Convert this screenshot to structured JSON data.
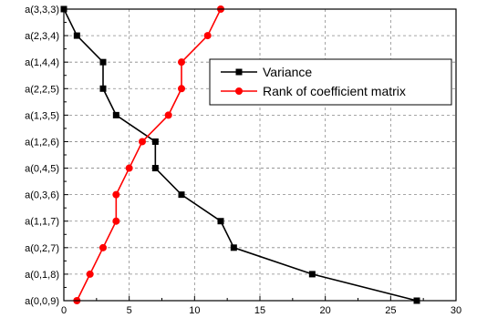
{
  "chart_data": {
    "type": "line",
    "categories": [
      "a(0,0,9)",
      "a(0,1,8)",
      "a(0,2,7)",
      "a(1,1,7)",
      "a(0,3,6)",
      "a(0,4,5)",
      "a(1,2,6)",
      "a(1,3,5)",
      "a(2,2,5)",
      "a(1,4,4)",
      "a(2,3,4)",
      "a(3,3,3)"
    ],
    "xlim": [
      0,
      30
    ],
    "xticks": [
      0,
      5,
      10,
      15,
      20,
      25,
      30
    ],
    "grid": true,
    "legend_position": "top-right",
    "series": [
      {
        "name": "Variance",
        "color": "#000000",
        "marker": "square",
        "values": [
          27,
          19,
          13,
          12,
          9,
          7,
          7,
          4,
          3,
          3,
          1,
          0
        ]
      },
      {
        "name": "Rank of coefficient matrix",
        "color": "#ff0000",
        "marker": "circle",
        "values": [
          1,
          2,
          3,
          4,
          4,
          5,
          6,
          8,
          9,
          9,
          11,
          12
        ]
      }
    ]
  }
}
